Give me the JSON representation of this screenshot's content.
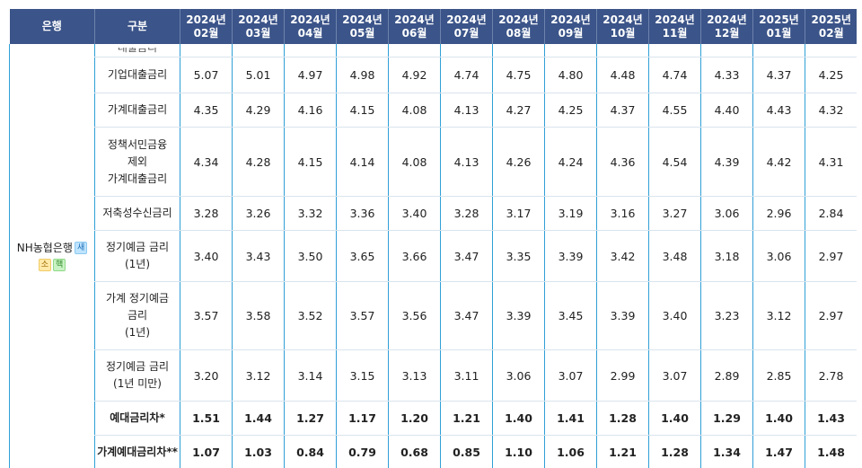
{
  "header": {
    "bank": "은행",
    "category": "구분",
    "months": [
      {
        "year": "2024년",
        "month": "02월"
      },
      {
        "year": "2024년",
        "month": "03월"
      },
      {
        "year": "2024년",
        "month": "04월"
      },
      {
        "year": "2024년",
        "month": "05월"
      },
      {
        "year": "2024년",
        "month": "06월"
      },
      {
        "year": "2024년",
        "month": "07월"
      },
      {
        "year": "2024년",
        "month": "08월"
      },
      {
        "year": "2024년",
        "month": "09월"
      },
      {
        "year": "2024년",
        "month": "10월"
      },
      {
        "year": "2024년",
        "month": "11월"
      },
      {
        "year": "2024년",
        "month": "12월"
      },
      {
        "year": "2025년",
        "month": "01월"
      },
      {
        "year": "2025년",
        "month": "02월"
      }
    ]
  },
  "bank": {
    "name": "NH농협은행",
    "badges": {
      "new": "새",
      "small": "소",
      "act": "핵"
    }
  },
  "cut_row_label": "대출금리",
  "rows": [
    {
      "label": [
        "기업대출금리"
      ],
      "values": [
        "5.07",
        "5.01",
        "4.97",
        "4.98",
        "4.92",
        "4.74",
        "4.75",
        "4.80",
        "4.48",
        "4.74",
        "4.33",
        "4.37",
        "4.25"
      ],
      "bold": false
    },
    {
      "label": [
        "가계대출금리"
      ],
      "values": [
        "4.35",
        "4.29",
        "4.16",
        "4.15",
        "4.08",
        "4.13",
        "4.27",
        "4.25",
        "4.37",
        "4.55",
        "4.40",
        "4.43",
        "4.32"
      ],
      "bold": false
    },
    {
      "label": [
        "정책서민금융",
        "제외",
        "가계대출금리"
      ],
      "values": [
        "4.34",
        "4.28",
        "4.15",
        "4.14",
        "4.08",
        "4.13",
        "4.26",
        "4.24",
        "4.36",
        "4.54",
        "4.39",
        "4.42",
        "4.31"
      ],
      "bold": false
    },
    {
      "label": [
        "저축성수신금리"
      ],
      "values": [
        "3.28",
        "3.26",
        "3.32",
        "3.36",
        "3.40",
        "3.28",
        "3.17",
        "3.19",
        "3.16",
        "3.27",
        "3.06",
        "2.96",
        "2.84"
      ],
      "bold": false
    },
    {
      "label": [
        "정기예금 금리",
        "(1년)"
      ],
      "values": [
        "3.40",
        "3.43",
        "3.50",
        "3.65",
        "3.66",
        "3.47",
        "3.35",
        "3.39",
        "3.42",
        "3.48",
        "3.18",
        "3.06",
        "2.97"
      ],
      "bold": false
    },
    {
      "label": [
        "가계 정기예금",
        "금리",
        "(1년)"
      ],
      "values": [
        "3.57",
        "3.58",
        "3.52",
        "3.57",
        "3.56",
        "3.47",
        "3.39",
        "3.45",
        "3.39",
        "3.40",
        "3.23",
        "3.12",
        "2.97"
      ],
      "bold": false
    },
    {
      "label": [
        "정기예금 금리",
        "(1년 미만)"
      ],
      "values": [
        "3.20",
        "3.12",
        "3.14",
        "3.15",
        "3.13",
        "3.11",
        "3.06",
        "3.07",
        "2.99",
        "3.07",
        "2.89",
        "2.85",
        "2.78"
      ],
      "bold": false
    },
    {
      "label": [
        "예대금리차*"
      ],
      "values": [
        "1.51",
        "1.44",
        "1.27",
        "1.17",
        "1.20",
        "1.21",
        "1.40",
        "1.41",
        "1.28",
        "1.40",
        "1.29",
        "1.40",
        "1.43"
      ],
      "bold": true
    },
    {
      "label": [
        "가계예대금리차**"
      ],
      "values": [
        "1.07",
        "1.03",
        "0.84",
        "0.79",
        "0.68",
        "0.85",
        "1.10",
        "1.06",
        "1.21",
        "1.28",
        "1.34",
        "1.47",
        "1.48"
      ],
      "bold": true
    }
  ]
}
